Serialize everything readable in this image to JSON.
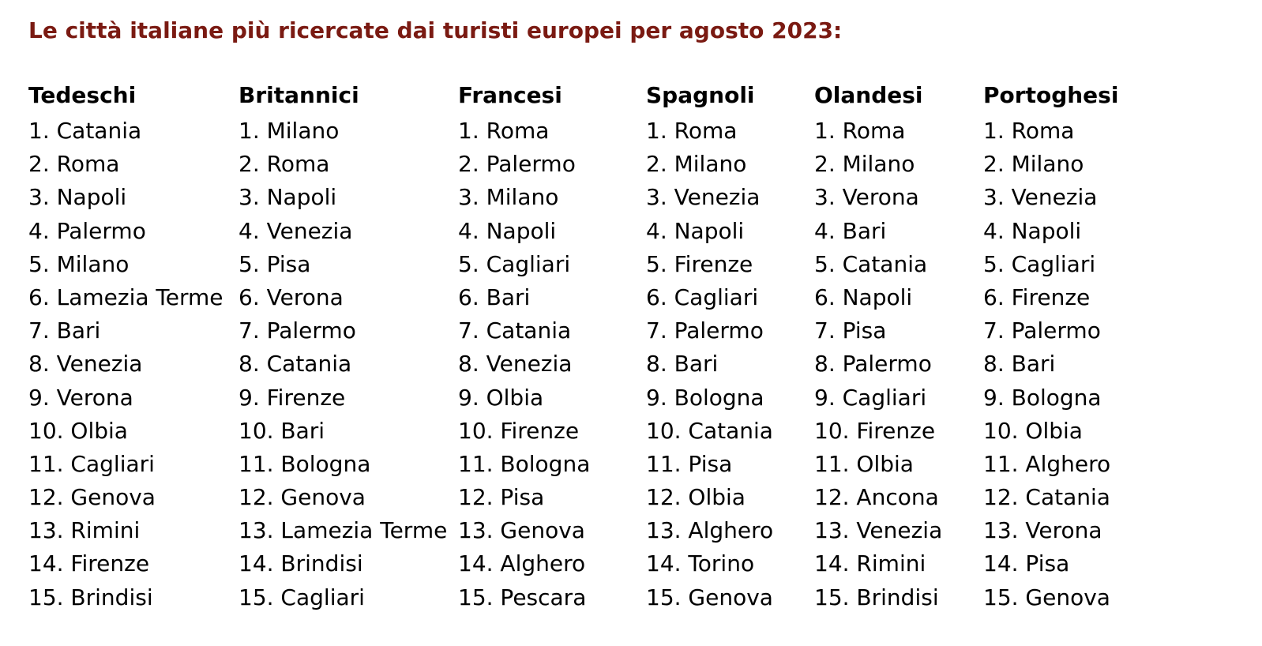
{
  "title": "Le città italiane più ricercate dai turisti europei per agosto 2023:",
  "title_color": "#7a1a12",
  "columns": [
    {
      "header": "Tedeschi",
      "items": [
        "1. Catania",
        "2. Roma",
        "3. Napoli",
        "4. Palermo",
        "5. Milano",
        "6. Lamezia Terme",
        "7. Bari",
        "8. Venezia",
        "9. Verona",
        "10. Olbia",
        "11. Cagliari",
        "12. Genova",
        "13. Rimini",
        "14. Firenze",
        "15. Brindisi"
      ]
    },
    {
      "header": "Britannici",
      "items": [
        "1. Milano",
        "2. Roma",
        "3. Napoli",
        "4. Venezia",
        "5. Pisa",
        "6. Verona",
        "7. Palermo",
        "8. Catania",
        "9. Firenze",
        "10. Bari",
        "11. Bologna",
        "12. Genova",
        "13. Lamezia Terme",
        "14. Brindisi",
        "15. Cagliari"
      ]
    },
    {
      "header": "Francesi",
      "items": [
        "1. Roma",
        "2. Palermo",
        "3. Milano",
        "4. Napoli",
        "5. Cagliari",
        "6. Bari",
        "7. Catania",
        "8. Venezia",
        "9. Olbia",
        "10. Firenze",
        "11. Bologna",
        "12. Pisa",
        "13. Genova",
        "14. Alghero",
        "15. Pescara"
      ]
    },
    {
      "header": "Spagnoli",
      "items": [
        "1. Roma",
        "2. Milano",
        "3. Venezia",
        "4. Napoli",
        "5. Firenze",
        "6. Cagliari",
        "7. Palermo",
        "8. Bari",
        "9. Bologna",
        "10. Catania",
        "11. Pisa",
        "12. Olbia",
        "13. Alghero",
        "14. Torino",
        "15. Genova"
      ]
    },
    {
      "header": "Olandesi",
      "items": [
        "1. Roma",
        "2. Milano",
        "3. Verona",
        "4. Bari",
        "5. Catania",
        "6. Napoli",
        "7. Pisa",
        "8. Palermo",
        "9. Cagliari",
        "10. Firenze",
        "11. Olbia",
        "12. Ancona",
        "13. Venezia",
        "14. Rimini",
        "15. Brindisi"
      ]
    },
    {
      "header": "Portoghesi",
      "items": [
        "1. Roma",
        "2. Milano",
        "3. Venezia",
        "4. Napoli",
        "5. Cagliari",
        "6. Firenze",
        "7. Palermo",
        "8. Bari",
        "9. Bologna",
        "10. Olbia",
        "11. Alghero",
        "12. Catania",
        "13. Verona",
        "14. Pisa",
        "15. Genova"
      ]
    }
  ]
}
